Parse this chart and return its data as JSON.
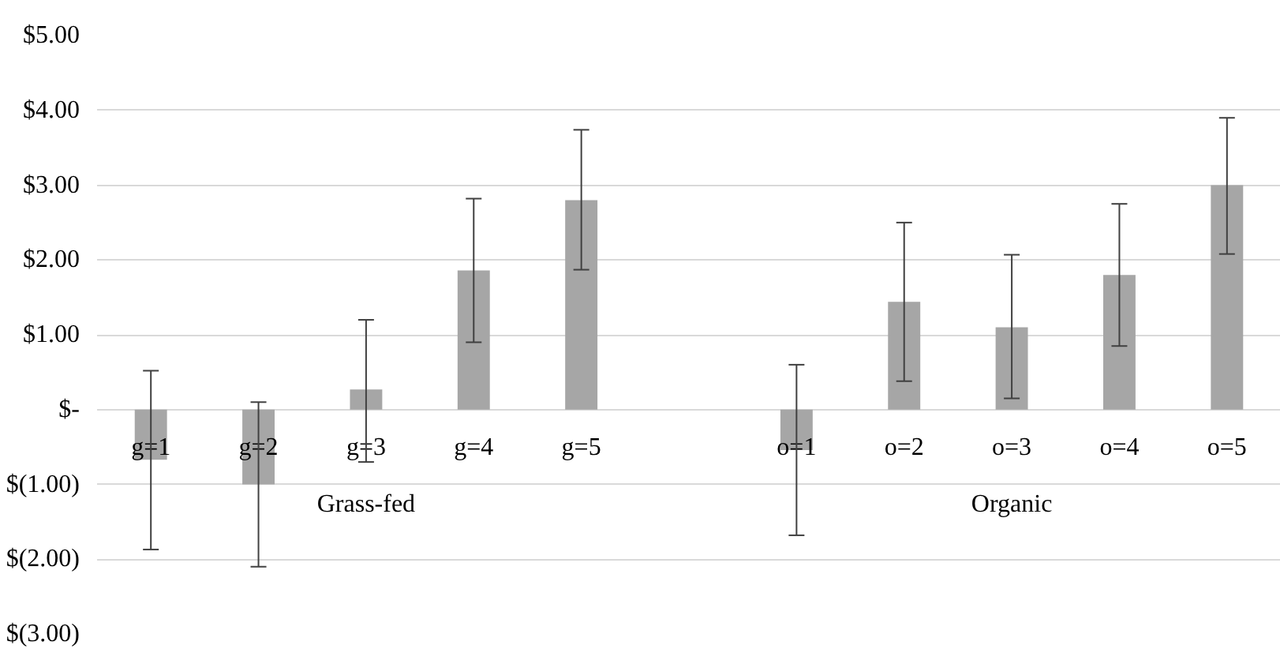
{
  "chart_data": {
    "type": "bar",
    "categories": [
      "g=1",
      "g=2",
      "g=3",
      "g=4",
      "g=5",
      null,
      "o=1",
      "o=2",
      "o=3",
      "o=4",
      "o=5"
    ],
    "values": [
      -0.67,
      -1.0,
      0.27,
      1.86,
      2.8,
      null,
      -0.54,
      1.44,
      1.1,
      1.8,
      3.0
    ],
    "errors": [
      [
        -1.87,
        0.52
      ],
      [
        -2.1,
        0.1
      ],
      [
        -0.7,
        1.2
      ],
      [
        0.9,
        2.82
      ],
      [
        1.87,
        3.74
      ],
      null,
      [
        -1.68,
        0.6
      ],
      [
        0.38,
        2.5
      ],
      [
        0.15,
        2.07
      ],
      [
        0.85,
        2.75
      ],
      [
        2.08,
        3.9
      ]
    ],
    "color": "#a6a6a6",
    "ylim": [
      -3,
      5
    ],
    "yticks": [
      {
        "value": 5,
        "label": "$5.00"
      },
      {
        "value": 4,
        "label": "$4.00"
      },
      {
        "value": 3,
        "label": "$3.00"
      },
      {
        "value": 2,
        "label": "$2.00"
      },
      {
        "value": 1,
        "label": "$1.00"
      },
      {
        "value": 0,
        "label": "$-"
      },
      {
        "value": -1,
        "label": "$(1.00)"
      },
      {
        "value": -2,
        "label": "$(2.00)"
      },
      {
        "value": -3,
        "label": "$(3.00)"
      }
    ],
    "grid": "y",
    "annotations": [
      "Grass-fed",
      "Organic"
    ]
  }
}
